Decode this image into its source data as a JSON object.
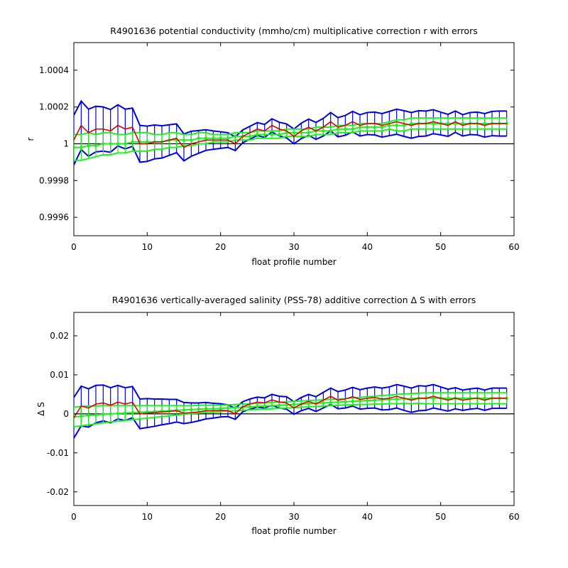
{
  "chart_data": [
    {
      "type": "line",
      "title": "R4901636 potential conductivity (mmho/cm) multiplicative correction r with errors",
      "xlabel": "float profile number",
      "ylabel": "r",
      "xlim": [
        0,
        60
      ],
      "ylim": [
        0.9995,
        1.00055
      ],
      "xticks": [
        0,
        10,
        20,
        30,
        40,
        50,
        60
      ],
      "xtick_labels": [
        "0",
        "10",
        "20",
        "30",
        "40",
        "50",
        "60"
      ],
      "yticks": [
        0.9996,
        0.9998,
        1.0,
        1.0002,
        1.0004
      ],
      "ytick_labels": [
        "0.9996",
        "0.9998",
        "1",
        "1.0002",
        "1.0004"
      ],
      "reference_line": 1.0,
      "grid": false,
      "colors": {
        "raw": "#dd0000",
        "fit": "#22ee22",
        "error": "#0000dd",
        "reference": "#000000"
      },
      "x": [
        0,
        1,
        2,
        3,
        4,
        5,
        6,
        7,
        8,
        9,
        10,
        11,
        12,
        13,
        14,
        15,
        16,
        17,
        18,
        19,
        20,
        21,
        22,
        23,
        24,
        25,
        26,
        27,
        28,
        29,
        30,
        31,
        32,
        33,
        34,
        35,
        36,
        37,
        38,
        39,
        40,
        41,
        42,
        43,
        44,
        45,
        46,
        47,
        48,
        49,
        50,
        51,
        52,
        53,
        54,
        55,
        56,
        57,
        58,
        59
      ],
      "series": [
        {
          "role": "raw",
          "values": [
            1.00002,
            1.0001,
            1.00006,
            1.00008,
            1.00008,
            1.00007,
            1.0001,
            1.00008,
            1.00009,
            1.0,
            1.0,
            1.00001,
            1.00001,
            1.00002,
            1.00003,
            0.99998,
            1.0,
            1.00001,
            1.00002,
            1.00002,
            1.00002,
            1.00002,
            1.0,
            1.00004,
            1.00006,
            1.00008,
            1.00007,
            1.0001,
            1.00008,
            1.00007,
            1.00004,
            1.00007,
            1.00009,
            1.00007,
            1.00009,
            1.00012,
            1.00009,
            1.0001,
            1.00012,
            1.0001,
            1.00011,
            1.00011,
            1.0001,
            1.00011,
            1.00012,
            1.00011,
            1.0001,
            1.00011,
            1.00011,
            1.00012,
            1.00011,
            1.0001,
            1.00012,
            1.0001,
            1.00011,
            1.00011,
            1.0001,
            1.00011,
            1.00011,
            1.00011
          ]
        },
        {
          "role": "fit",
          "values": [
            0.99998,
            0.99998,
            0.99999,
            0.99999,
            1.0,
            1.0,
            1.0,
            1.0,
            1.00001,
            1.00001,
            1.00001,
            1.00001,
            1.00001,
            1.00002,
            1.00002,
            1.00002,
            1.00002,
            1.00003,
            1.00003,
            1.00003,
            1.00003,
            1.00003,
            1.00004,
            1.00004,
            1.00004,
            1.00005,
            1.00005,
            1.00005,
            1.00005,
            1.00006,
            1.00006,
            1.00006,
            1.00006,
            1.00007,
            1.00007,
            1.00007,
            1.00008,
            1.00008,
            1.00008,
            1.00009,
            1.00009,
            1.00009,
            1.00009,
            1.0001,
            1.0001,
            1.0001,
            1.00011,
            1.00011,
            1.00011,
            1.00011,
            1.00011,
            1.00011,
            1.00011,
            1.00011,
            1.00011,
            1.00011,
            1.00011,
            1.00011,
            1.00011,
            1.00011
          ]
        },
        {
          "role": "fit-error",
          "values": [
            7e-05,
            7e-05,
            7e-05,
            6e-05,
            6e-05,
            6e-05,
            5e-05,
            5e-05,
            5e-05,
            5e-05,
            5e-05,
            4e-05,
            4e-05,
            4e-05,
            4e-05,
            3e-05,
            3e-05,
            3e-05,
            3e-05,
            2e-05,
            2e-05,
            2e-05,
            2e-05,
            2e-05,
            2e-05,
            2e-05,
            2e-05,
            2e-05,
            2e-05,
            2e-05,
            2e-05,
            2e-05,
            2e-05,
            2e-05,
            2e-05,
            2e-05,
            2e-05,
            2e-05,
            2e-05,
            2e-05,
            2e-05,
            2e-05,
            2e-05,
            2e-05,
            3e-05,
            3e-05,
            3e-05,
            3e-05,
            3e-05,
            3e-05,
            3e-05,
            3e-05,
            3e-05,
            3e-05,
            3e-05,
            3e-05,
            3e-05,
            3e-05,
            3e-05,
            3e-05
          ]
        },
        {
          "role": "error",
          "values": [
            0.000135,
            0.000132,
            0.000128,
            0.000124,
            0.00012,
            0.000116,
            0.000112,
            0.000108,
            0.000104,
            0.0001,
            9.6e-05,
            9.2e-05,
            8.8e-05,
            8.3e-05,
            7.8e-05,
            7.3e-05,
            6.8e-05,
            6.2e-05,
            5.6e-05,
            5e-05,
            4.5e-05,
            4e-05,
            3.7e-05,
            3.5e-05,
            3.5e-05,
            3.5e-05,
            3.5e-05,
            3.6e-05,
            3.7e-05,
            3.8e-05,
            4e-05,
            4.2e-05,
            4.4e-05,
            4.6e-05,
            4.8e-05,
            5e-05,
            5.2e-05,
            5.4e-05,
            5.6e-05,
            5.8e-05,
            6e-05,
            6.2e-05,
            6.4e-05,
            6.6e-05,
            6.8e-05,
            7e-05,
            7e-05,
            7e-05,
            6.8e-05,
            6.5e-05,
            6.2e-05,
            6e-05,
            5.8e-05,
            5.8e-05,
            6e-05,
            6.2e-05,
            6.4e-05,
            6.6e-05,
            6.8e-05,
            6.8e-05
          ]
        }
      ]
    },
    {
      "type": "line",
      "title": "R4901636 vertically-averaged salinity (PSS-78) additive correction Δ S with errors",
      "xlabel": "float profile number",
      "ylabel": "Δ S",
      "xlim": [
        0,
        60
      ],
      "ylim": [
        -0.0235,
        0.026
      ],
      "xticks": [
        0,
        10,
        20,
        30,
        40,
        50,
        60
      ],
      "xtick_labels": [
        "0",
        "10",
        "20",
        "30",
        "40",
        "50",
        "60"
      ],
      "yticks": [
        -0.02,
        -0.01,
        0,
        0.01,
        0.02
      ],
      "ytick_labels": [
        "-0.02",
        "-0.01",
        "0",
        "0.01",
        "0.02"
      ],
      "reference_line": 0,
      "grid": false,
      "colors": {
        "raw": "#dd0000",
        "fit": "#22ee22",
        "error": "#0000dd",
        "reference": "#000000"
      },
      "x": [
        0,
        1,
        2,
        3,
        4,
        5,
        6,
        7,
        8,
        9,
        10,
        11,
        12,
        13,
        14,
        15,
        16,
        17,
        18,
        19,
        20,
        21,
        22,
        23,
        24,
        25,
        26,
        27,
        28,
        29,
        30,
        31,
        32,
        33,
        34,
        35,
        36,
        37,
        38,
        39,
        40,
        41,
        42,
        43,
        44,
        45,
        46,
        47,
        48,
        49,
        50,
        51,
        52,
        53,
        54,
        55,
        56,
        57,
        58,
        59
      ],
      "series": [
        {
          "role": "raw",
          "values": [
            -0.001,
            0.002,
            0.0015,
            0.0025,
            0.0028,
            0.0022,
            0.003,
            0.0025,
            0.003,
            0.0,
            0.0002,
            0.0003,
            0.0005,
            0.0006,
            0.0008,
            0.0002,
            0.0003,
            0.0005,
            0.0008,
            0.0008,
            0.0009,
            0.0008,
            0.0,
            0.0018,
            0.0025,
            0.003,
            0.0028,
            0.0036,
            0.003,
            0.0028,
            0.0015,
            0.0025,
            0.0032,
            0.0025,
            0.0035,
            0.0045,
            0.0035,
            0.0038,
            0.0044,
            0.0037,
            0.004,
            0.0042,
            0.0038,
            0.004,
            0.0045,
            0.004,
            0.0035,
            0.004,
            0.004,
            0.0045,
            0.004,
            0.0035,
            0.004,
            0.0035,
            0.0038,
            0.004,
            0.0035,
            0.004,
            0.004,
            0.004
          ]
        },
        {
          "role": "fit",
          "values": [
            -0.0008,
            -0.0006,
            -0.0004,
            -0.0003,
            -0.0001,
            0.0,
            0.0001,
            0.0002,
            0.0003,
            0.0004,
            0.0005,
            0.0006,
            0.0007,
            0.0008,
            0.0009,
            0.001,
            0.0011,
            0.0012,
            0.0013,
            0.0013,
            0.0014,
            0.0015,
            0.0016,
            0.0017,
            0.0018,
            0.0019,
            0.002,
            0.0021,
            0.0022,
            0.0023,
            0.0024,
            0.0025,
            0.0026,
            0.0027,
            0.0028,
            0.0029,
            0.003,
            0.0031,
            0.0032,
            0.0033,
            0.0034,
            0.0035,
            0.0036,
            0.0037,
            0.0038,
            0.0039,
            0.0039,
            0.004,
            0.004,
            0.004,
            0.004,
            0.004,
            0.004,
            0.004,
            0.004,
            0.004,
            0.004,
            0.004,
            0.004,
            0.004
          ]
        },
        {
          "role": "fit-error",
          "values": [
            0.0025,
            0.0025,
            0.0024,
            0.0023,
            0.0022,
            0.0021,
            0.002,
            0.0019,
            0.0018,
            0.0017,
            0.0016,
            0.0015,
            0.0014,
            0.0013,
            0.0012,
            0.0011,
            0.001,
            0.001,
            0.0009,
            0.0009,
            0.0008,
            0.0008,
            0.0008,
            0.0008,
            0.0008,
            0.0008,
            0.0008,
            0.0008,
            0.0008,
            0.0008,
            0.0008,
            0.0008,
            0.0008,
            0.0008,
            0.0008,
            0.0008,
            0.0008,
            0.0008,
            0.0009,
            0.0009,
            0.001,
            0.001,
            0.0011,
            0.0011,
            0.0012,
            0.0012,
            0.0013,
            0.0013,
            0.0014,
            0.0014,
            0.0014,
            0.0014,
            0.0014,
            0.0014,
            0.0014,
            0.0014,
            0.0014,
            0.0014,
            0.0014,
            0.0014
          ]
        },
        {
          "role": "error",
          "values": [
            0.0052,
            0.0051,
            0.0049,
            0.0048,
            0.0046,
            0.0045,
            0.0043,
            0.0042,
            0.004,
            0.0038,
            0.0037,
            0.0035,
            0.0033,
            0.0031,
            0.0029,
            0.0027,
            0.0025,
            0.0023,
            0.0021,
            0.0019,
            0.0017,
            0.0015,
            0.0014,
            0.0013,
            0.0013,
            0.0013,
            0.0013,
            0.0014,
            0.0015,
            0.0016,
            0.0016,
            0.0017,
            0.0018,
            0.0019,
            0.002,
            0.0021,
            0.0022,
            0.0023,
            0.0024,
            0.0025,
            0.0026,
            0.0027,
            0.0028,
            0.0029,
            0.003,
            0.0031,
            0.0031,
            0.0032,
            0.0031,
            0.003,
            0.0029,
            0.0028,
            0.0027,
            0.0026,
            0.0026,
            0.0026,
            0.0026,
            0.0026,
            0.0026,
            0.0026
          ]
        }
      ]
    }
  ]
}
